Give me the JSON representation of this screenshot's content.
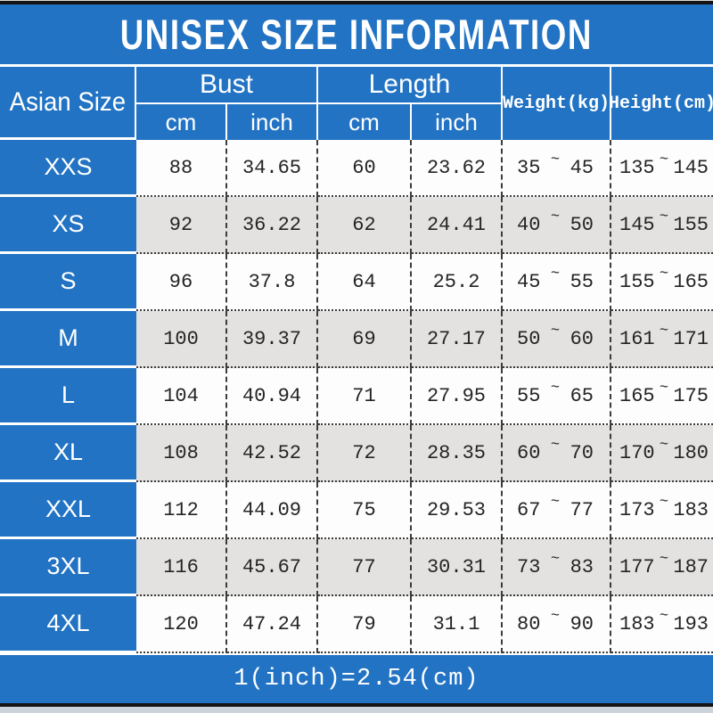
{
  "title": "UNISEX SIZE INFORMATION",
  "footer_note": "1(inch)=2.54(cm)",
  "colors": {
    "blue": "#2273c3",
    "row_white": "#fdfdfd",
    "row_alt_gray": "#e3e2e0",
    "text_dark": "#242424",
    "edge_black": "#141414"
  },
  "table": {
    "tilde": "~",
    "header": {
      "size_label": "Asian Size",
      "bust_label": "Bust",
      "length_label": "Length",
      "bust_cm_label": "cm",
      "bust_inch_label": "inch",
      "length_cm_label": "cm",
      "length_inch_label": "inch",
      "weight_label": "Weight(kg)",
      "height_label": "Height(cm)"
    },
    "rows": [
      {
        "size": "XXS",
        "bust_cm": "88",
        "bust_inch": "34.65",
        "length_cm": "60",
        "length_inch": "23.62",
        "weight_min": "35",
        "weight_max": "45",
        "height_min": "135",
        "height_max": "145"
      },
      {
        "size": "XS",
        "bust_cm": "92",
        "bust_inch": "36.22",
        "length_cm": "62",
        "length_inch": "24.41",
        "weight_min": "40",
        "weight_max": "50",
        "height_min": "145",
        "height_max": "155"
      },
      {
        "size": "S",
        "bust_cm": "96",
        "bust_inch": "37.8",
        "length_cm": "64",
        "length_inch": "25.2",
        "weight_min": "45",
        "weight_max": "55",
        "height_min": "155",
        "height_max": "165"
      },
      {
        "size": "M",
        "bust_cm": "100",
        "bust_inch": "39.37",
        "length_cm": "69",
        "length_inch": "27.17",
        "weight_min": "50",
        "weight_max": "60",
        "height_min": "161",
        "height_max": "171"
      },
      {
        "size": "L",
        "bust_cm": "104",
        "bust_inch": "40.94",
        "length_cm": "71",
        "length_inch": "27.95",
        "weight_min": "55",
        "weight_max": "65",
        "height_min": "165",
        "height_max": "175"
      },
      {
        "size": "XL",
        "bust_cm": "108",
        "bust_inch": "42.52",
        "length_cm": "72",
        "length_inch": "28.35",
        "weight_min": "60",
        "weight_max": "70",
        "height_min": "170",
        "height_max": "180"
      },
      {
        "size": "XXL",
        "bust_cm": "112",
        "bust_inch": "44.09",
        "length_cm": "75",
        "length_inch": "29.53",
        "weight_min": "67",
        "weight_max": "77",
        "height_min": "173",
        "height_max": "183"
      },
      {
        "size": "3XL",
        "bust_cm": "116",
        "bust_inch": "45.67",
        "length_cm": "77",
        "length_inch": "30.31",
        "weight_min": "73",
        "weight_max": "83",
        "height_min": "177",
        "height_max": "187"
      },
      {
        "size": "4XL",
        "bust_cm": "120",
        "bust_inch": "47.24",
        "length_cm": "79",
        "length_inch": "31.1",
        "weight_min": "80",
        "weight_max": "90",
        "height_min": "183",
        "height_max": "193"
      }
    ]
  },
  "chart_data": {
    "type": "table",
    "title": "UNISEX SIZE INFORMATION",
    "columns": [
      "Asian Size",
      "Bust cm",
      "Bust inch",
      "Length cm",
      "Length inch",
      "Weight(kg)",
      "Height(cm)"
    ],
    "rows": [
      [
        "XXS",
        88,
        34.65,
        60,
        23.62,
        "35~45",
        "135~145"
      ],
      [
        "XS",
        92,
        36.22,
        62,
        24.41,
        "40~50",
        "145~155"
      ],
      [
        "S",
        96,
        37.8,
        64,
        25.2,
        "45~55",
        "155~165"
      ],
      [
        "M",
        100,
        39.37,
        69,
        27.17,
        "50~60",
        "161~171"
      ],
      [
        "L",
        104,
        40.94,
        71,
        27.95,
        "55~65",
        "165~175"
      ],
      [
        "XL",
        108,
        42.52,
        72,
        28.35,
        "60~70",
        "170~180"
      ],
      [
        "XXL",
        112,
        44.09,
        75,
        29.53,
        "67~77",
        "173~183"
      ],
      [
        "3XL",
        116,
        45.67,
        77,
        30.31,
        "73~83",
        "177~187"
      ],
      [
        "4XL",
        120,
        47.24,
        79,
        31.1,
        "80~90",
        "183~193"
      ]
    ],
    "note": "1(inch)=2.54(cm)"
  }
}
